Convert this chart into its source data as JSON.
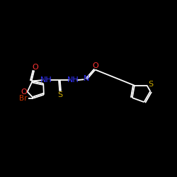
{
  "background_color": "#000000",
  "bond_color": "#ffffff",
  "cO": "#ff3333",
  "cN": "#3333ff",
  "cS": "#ccaa00",
  "cBr": "#cc3300",
  "figsize": [
    2.5,
    2.5
  ],
  "dpi": 100,
  "xlim": [
    0,
    10
  ],
  "ylim": [
    0,
    10
  ]
}
